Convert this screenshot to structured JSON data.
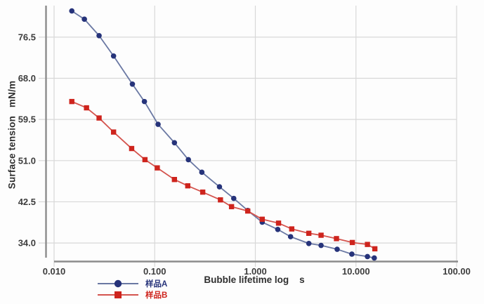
{
  "chart_data": {
    "type": "line",
    "title": "",
    "xlabel": "Bubble lifetime log    s",
    "ylabel": "Surface tension   mN/m",
    "x_scale": "log",
    "xlim": [
      0.01,
      100
    ],
    "ylim": [
      30.1,
      83.0
    ],
    "grid": true,
    "legend_position": "bottom-left",
    "x_ticks": [
      {
        "value": 0.01,
        "label": "0.010"
      },
      {
        "value": 0.1,
        "label": "0.100"
      },
      {
        "value": 1,
        "label": "1.000"
      },
      {
        "value": 10,
        "label": "10.000"
      },
      {
        "value": 100,
        "label": "100.00"
      }
    ],
    "y_ticks": [
      {
        "value": 34.0,
        "label": "34.0"
      },
      {
        "value": 42.5,
        "label": "42.5"
      },
      {
        "value": 51.0,
        "label": "51.0"
      },
      {
        "value": 59.5,
        "label": "59.5"
      },
      {
        "value": 68.0,
        "label": "68.0"
      },
      {
        "value": 76.5,
        "label": "76.5"
      }
    ],
    "colors": {
      "grid": "#d8d8d8",
      "axis": "#8c8c8c",
      "tick_text": "#3d3d3d"
    },
    "series": [
      {
        "name": "样品A",
        "marker": "circle",
        "marker_color": "#26337a",
        "line_color": "#6a78a3",
        "x": [
          0.015,
          0.02,
          0.028,
          0.039,
          0.06,
          0.079,
          0.108,
          0.157,
          0.216,
          0.294,
          0.44,
          0.61,
          0.84,
          1.17,
          1.67,
          2.24,
          3.4,
          4.5,
          6.5,
          9.1,
          13.0,
          15.2
        ],
        "y": [
          81.9,
          80.2,
          76.8,
          72.6,
          66.8,
          63.2,
          58.5,
          54.7,
          51.2,
          48.6,
          45.6,
          43.2,
          40.7,
          38.3,
          36.8,
          35.3,
          33.9,
          33.5,
          32.7,
          31.7,
          31.2,
          30.9
        ]
      },
      {
        "name": "样品B",
        "marker": "square",
        "marker_color": "#ce241d",
        "line_color": "#d4544e",
        "x": [
          0.015,
          0.021,
          0.028,
          0.039,
          0.059,
          0.08,
          0.106,
          0.157,
          0.213,
          0.3,
          0.45,
          0.58,
          0.84,
          1.17,
          1.7,
          2.3,
          3.4,
          4.5,
          6.4,
          9.2,
          13.0,
          15.4
        ],
        "y": [
          63.2,
          61.9,
          59.8,
          56.9,
          53.5,
          51.2,
          49.5,
          47.1,
          45.8,
          44.5,
          42.9,
          41.5,
          40.6,
          38.9,
          38.1,
          36.9,
          36.0,
          35.6,
          34.9,
          34.1,
          33.7,
          32.8
        ]
      }
    ]
  }
}
